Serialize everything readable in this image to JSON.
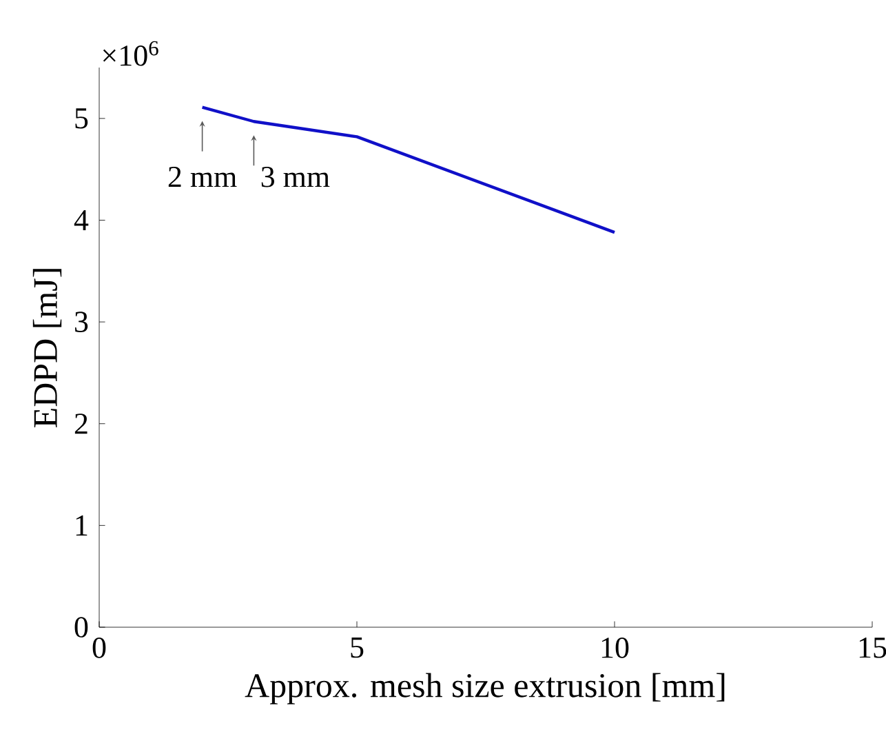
{
  "chart_data": {
    "type": "line",
    "xlabel": "Approx. mesh size extrusion [mm]",
    "ylabel": "EDPD [mJ]",
    "x": [
      2,
      3,
      5,
      10
    ],
    "series": [
      {
        "color": "#1010c8",
        "values": [
          5.11,
          4.97,
          4.82,
          3.88
        ]
      }
    ],
    "xlim": [
      0,
      15
    ],
    "xticks": [
      0,
      5,
      10,
      15
    ],
    "ylim": [
      0,
      5.5
    ],
    "yticks": [
      0,
      1,
      2,
      3,
      4,
      5
    ],
    "annotations": [
      "×10$^{6}$",
      {
        "text": "2 mm",
        "x": 2,
        "y": 5.11
      },
      {
        "text": "3 mm",
        "x": 3,
        "y": 4.97
      }
    ],
    "marker": "none",
    "line_style": "solid"
  }
}
